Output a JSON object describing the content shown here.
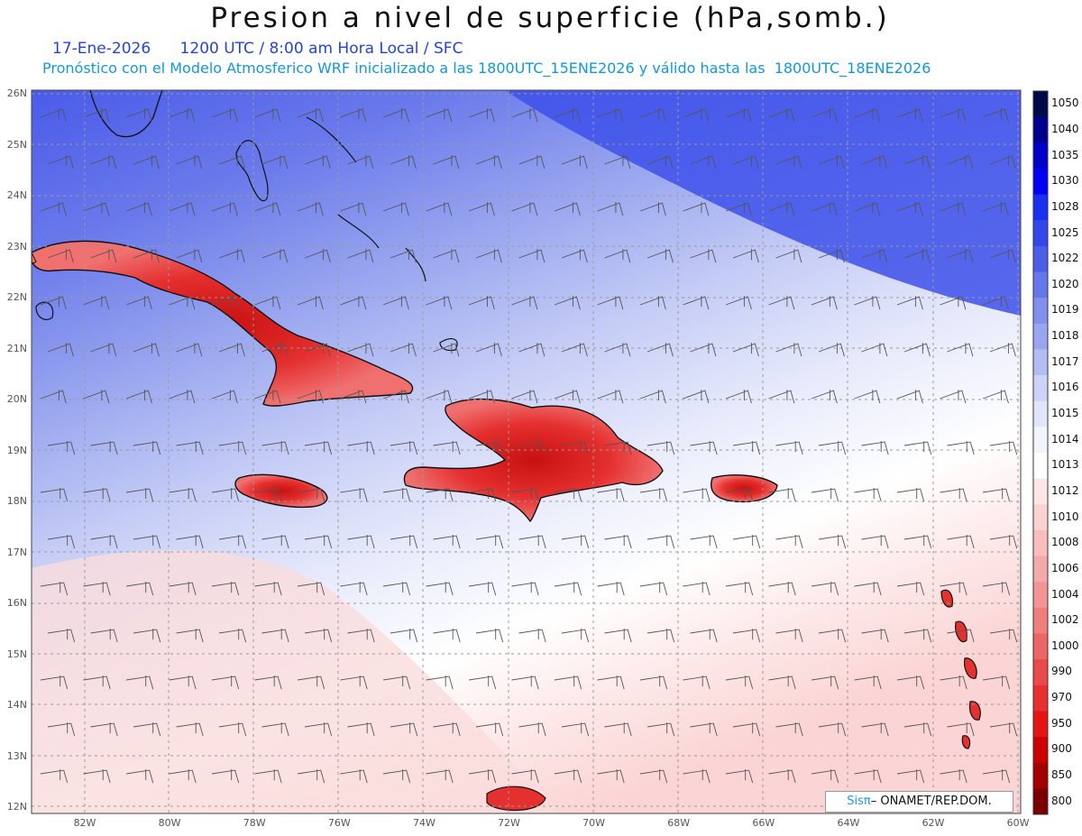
{
  "title": "Presion a nivel de superficie (hPa,somb.)",
  "subtitle_line1": "17-Ene-2026      1200 UTC / 8:00 am Hora Local / SFC",
  "subtitle_line2": "Pronóstico con el Modelo Atmosferico WRF inicializado a las 1800UTC_15ENE2026 y válido hasta las  1800UTC_18ENE2026",
  "credit": {
    "sis": "Sisπ",
    "rest": " ONAMET/REP.DOM."
  },
  "map": {
    "lat_range": [
      12,
      26
    ],
    "lon_range": [
      -83.2,
      -60
    ],
    "lat_labels": [
      "26N",
      "25N",
      "24N",
      "23N",
      "22N",
      "21N",
      "20N",
      "19N",
      "18N",
      "17N",
      "16N",
      "15N",
      "14N",
      "13N",
      "12N"
    ],
    "lon_labels": [
      "82W",
      "80W",
      "78W",
      "76W",
      "74W",
      "72W",
      "70W",
      "68W",
      "66W",
      "64W",
      "62W",
      "60W"
    ]
  },
  "colorbar": {
    "levels": [
      "1050",
      "1040",
      "1035",
      "1030",
      "1028",
      "1025",
      "1022",
      "1020",
      "1019",
      "1018",
      "1017",
      "1016",
      "1015",
      "1014",
      "1013",
      "1012",
      "1010",
      "1008",
      "1006",
      "1004",
      "1002",
      "1000",
      "990",
      "970",
      "950",
      "900",
      "850",
      "800"
    ],
    "colors": [
      "#000a4a",
      "#00008f",
      "#0000c8",
      "#0000f5",
      "#1a30f0",
      "#3347ec",
      "#4c5ee9",
      "#6677ea",
      "#8090ec",
      "#99a6ef",
      "#b3bdf3",
      "#ccd3f7",
      "#e0e5fa",
      "#f2f4fd",
      "#ffffff",
      "#fde6e6",
      "#fbd2d2",
      "#f8bebe",
      "#f5aaaa",
      "#f29494",
      "#ef7e7e",
      "#ec6666",
      "#ea4a4a",
      "#e83030",
      "#e51515",
      "#cc0000",
      "#a30000",
      "#7a0000"
    ]
  }
}
